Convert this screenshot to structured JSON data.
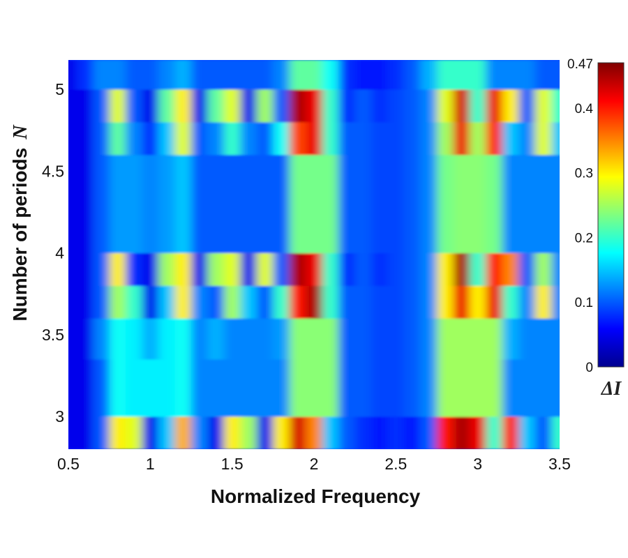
{
  "chart_data": {
    "type": "heatmap",
    "title": "",
    "xlabel": "Normalized Frequency",
    "ylabel": "Number of periods",
    "ylabel_symbol": "N",
    "xlim": [
      0.5,
      3.5
    ],
    "ylim": [
      2.8,
      5.18
    ],
    "xticks": [
      "0.5",
      "1",
      "1.5",
      "2",
      "2.5",
      "3",
      "3.5"
    ],
    "yticks": [
      "3",
      "3.5",
      "4",
      "4.5",
      "5"
    ],
    "colormap": "jet",
    "colorbar": {
      "label": "ΔI",
      "range": [
        0,
        0.47
      ],
      "ticks": [
        "0",
        "0.1",
        "0.2",
        "0.3",
        "0.4",
        "0.47"
      ]
    },
    "x": [
      0.5,
      0.6,
      0.7,
      0.8,
      0.9,
      1.0,
      1.1,
      1.2,
      1.3,
      1.4,
      1.5,
      1.6,
      1.7,
      1.8,
      1.9,
      2.0,
      2.1,
      2.2,
      2.3,
      2.4,
      2.5,
      2.6,
      2.7,
      2.8,
      2.9,
      3.0,
      3.1,
      3.2,
      3.3,
      3.4,
      3.5
    ],
    "y_edges": [
      2.8,
      3.0,
      3.35,
      3.6,
      3.8,
      4.0,
      4.35,
      4.6,
      4.8,
      5.0,
      5.18
    ],
    "z": [
      [
        0.05,
        0.05,
        0.1,
        0.3,
        0.28,
        0.05,
        0.15,
        0.33,
        0.12,
        0.05,
        0.3,
        0.25,
        0.05,
        0.3,
        0.43,
        0.35,
        0.15,
        0.1,
        0.08,
        0.07,
        0.08,
        0.07,
        0.1,
        0.4,
        0.45,
        0.42,
        0.2,
        0.4,
        0.15,
        0.1,
        0.2
      ],
      [
        0.05,
        0.05,
        0.1,
        0.18,
        0.17,
        0.17,
        0.17,
        0.18,
        0.12,
        0.12,
        0.12,
        0.12,
        0.12,
        0.12,
        0.24,
        0.24,
        0.24,
        0.1,
        0.1,
        0.09,
        0.09,
        0.1,
        0.12,
        0.25,
        0.25,
        0.25,
        0.25,
        0.12,
        0.12,
        0.12,
        0.12
      ],
      [
        0.05,
        0.05,
        0.12,
        0.18,
        0.17,
        0.14,
        0.17,
        0.18,
        0.12,
        0.14,
        0.12,
        0.12,
        0.12,
        0.13,
        0.24,
        0.24,
        0.24,
        0.1,
        0.1,
        0.09,
        0.09,
        0.1,
        0.12,
        0.25,
        0.25,
        0.25,
        0.25,
        0.14,
        0.12,
        0.12,
        0.12
      ],
      [
        0.05,
        0.05,
        0.1,
        0.25,
        0.2,
        0.05,
        0.15,
        0.3,
        0.12,
        0.1,
        0.25,
        0.15,
        0.1,
        0.2,
        0.4,
        0.45,
        0.2,
        0.1,
        0.1,
        0.09,
        0.09,
        0.1,
        0.12,
        0.3,
        0.42,
        0.3,
        0.42,
        0.2,
        0.12,
        0.3,
        0.12
      ],
      [
        0.05,
        0.05,
        0.1,
        0.3,
        0.08,
        0.05,
        0.25,
        0.3,
        0.05,
        0.25,
        0.28,
        0.05,
        0.28,
        0.1,
        0.45,
        0.42,
        0.2,
        0.08,
        0.1,
        0.08,
        0.09,
        0.1,
        0.12,
        0.3,
        0.45,
        0.2,
        0.4,
        0.35,
        0.1,
        0.25,
        0.12
      ],
      [
        0.05,
        0.05,
        0.1,
        0.13,
        0.13,
        0.12,
        0.13,
        0.15,
        0.1,
        0.1,
        0.1,
        0.1,
        0.1,
        0.1,
        0.23,
        0.23,
        0.23,
        0.1,
        0.1,
        0.09,
        0.09,
        0.1,
        0.12,
        0.23,
        0.24,
        0.24,
        0.23,
        0.12,
        0.12,
        0.12,
        0.12
      ],
      [
        0.05,
        0.05,
        0.1,
        0.13,
        0.13,
        0.12,
        0.13,
        0.15,
        0.1,
        0.1,
        0.1,
        0.1,
        0.1,
        0.1,
        0.23,
        0.23,
        0.23,
        0.1,
        0.1,
        0.09,
        0.09,
        0.1,
        0.12,
        0.23,
        0.24,
        0.24,
        0.23,
        0.12,
        0.12,
        0.12,
        0.12
      ],
      [
        0.05,
        0.05,
        0.1,
        0.22,
        0.12,
        0.08,
        0.15,
        0.28,
        0.1,
        0.12,
        0.2,
        0.12,
        0.1,
        0.18,
        0.38,
        0.42,
        0.2,
        0.1,
        0.1,
        0.09,
        0.09,
        0.1,
        0.12,
        0.25,
        0.42,
        0.25,
        0.4,
        0.15,
        0.12,
        0.28,
        0.15
      ],
      [
        0.05,
        0.05,
        0.1,
        0.28,
        0.1,
        0.05,
        0.22,
        0.3,
        0.05,
        0.22,
        0.28,
        0.05,
        0.25,
        0.1,
        0.45,
        0.42,
        0.2,
        0.08,
        0.1,
        0.08,
        0.09,
        0.1,
        0.12,
        0.28,
        0.43,
        0.2,
        0.42,
        0.3,
        0.1,
        0.28,
        0.2
      ],
      [
        0.05,
        0.08,
        0.12,
        0.12,
        0.1,
        0.1,
        0.12,
        0.14,
        0.1,
        0.1,
        0.1,
        0.1,
        0.1,
        0.12,
        0.22,
        0.22,
        0.18,
        0.08,
        0.07,
        0.07,
        0.08,
        0.1,
        0.14,
        0.2,
        0.2,
        0.2,
        0.12,
        0.12,
        0.12,
        0.1,
        0.1
      ]
    ]
  }
}
